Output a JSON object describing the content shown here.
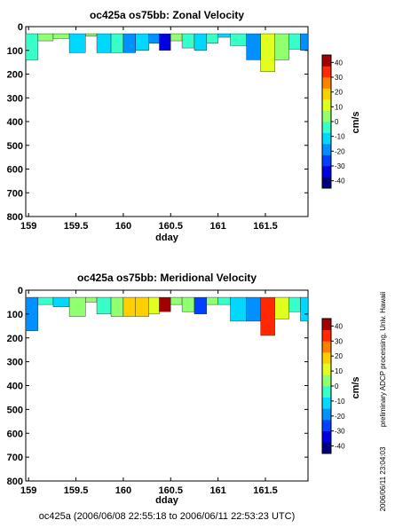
{
  "footer": "oc425a (2006/06/08 22:55:18 to 2006/06/11 22:53:23 UTC)",
  "side_note": "preliminary ADCP processing,   Univ. Hawaii",
  "side_stamp": "2006/06/11 23:04:03",
  "colors": {
    "scale": [
      "#00007f",
      "#0000e0",
      "#0040ff",
      "#0090ff",
      "#00d8ff",
      "#38ffc8",
      "#90ff70",
      "#e0ff20",
      "#ffd000",
      "#ff8000",
      "#ff2800",
      "#a00000"
    ]
  },
  "chart_data": [
    {
      "type": "heatmap",
      "title": "oc425a os75bb: Zonal Velocity",
      "xlabel": "dday",
      "ylabel": "",
      "xlim": [
        158.97,
        161.95
      ],
      "ylim": [
        800,
        0
      ],
      "xticks": [
        159,
        159.5,
        160,
        160.5,
        161,
        161.5
      ],
      "xtick_labels": [
        "159",
        "159.5",
        "160",
        "160.5",
        "161",
        "161.5"
      ],
      "yticks": [
        0,
        100,
        200,
        300,
        400,
        500,
        600,
        700,
        800
      ],
      "colorbar": {
        "label": "cm/s",
        "range": [
          -45,
          45
        ],
        "ticks": [
          40,
          30,
          20,
          10,
          0,
          -10,
          -20,
          -30,
          -40
        ]
      },
      "bins_x": [
        158.97,
        159.1,
        159.26,
        159.43,
        159.6,
        159.72,
        159.87,
        160.0,
        160.13,
        160.27,
        160.38,
        160.5,
        160.62,
        160.75,
        160.88,
        161.0,
        161.13,
        161.3,
        161.45,
        161.6,
        161.75,
        161.87,
        161.95
      ],
      "depth_top": [
        30,
        30,
        30,
        30,
        30,
        30,
        30,
        30,
        30,
        30,
        30,
        30,
        30,
        30,
        30,
        30,
        30,
        30,
        30,
        30,
        30,
        30
      ],
      "depth_bottom": [
        140,
        60,
        50,
        110,
        40,
        110,
        110,
        110,
        100,
        70,
        100,
        60,
        90,
        100,
        70,
        45,
        80,
        140,
        190,
        140,
        95,
        100
      ],
      "values": [
        -6,
        4,
        2,
        -8,
        2,
        -14,
        -4,
        -16,
        -10,
        -22,
        -36,
        3,
        -2,
        -14,
        -6,
        -12,
        -4,
        -16,
        12,
        6,
        -4,
        -16
      ]
    },
    {
      "type": "heatmap",
      "title": "oc425a os75bb: Meridional Velocity",
      "xlabel": "dday",
      "ylabel": "",
      "xlim": [
        158.97,
        161.95
      ],
      "ylim": [
        800,
        0
      ],
      "xticks": [
        159,
        159.5,
        160,
        160.5,
        161,
        161.5
      ],
      "xtick_labels": [
        "159",
        "159.5",
        "160",
        "160.5",
        "161",
        "161.5"
      ],
      "yticks": [
        0,
        100,
        200,
        300,
        400,
        500,
        600,
        700,
        800
      ],
      "colorbar": {
        "label": "cm/s",
        "range": [
          -45,
          45
        ],
        "ticks": [
          40,
          30,
          20,
          10,
          0,
          -10,
          -20,
          -30,
          -40
        ]
      },
      "bins_x": [
        158.97,
        159.1,
        159.26,
        159.43,
        159.6,
        159.72,
        159.87,
        160.0,
        160.13,
        160.27,
        160.38,
        160.5,
        160.62,
        160.75,
        160.88,
        161.0,
        161.13,
        161.3,
        161.45,
        161.6,
        161.75,
        161.87,
        161.95
      ],
      "depth_top": [
        30,
        30,
        30,
        30,
        30,
        30,
        30,
        30,
        30,
        30,
        30,
        30,
        30,
        30,
        30,
        30,
        30,
        30,
        30,
        30,
        30,
        30
      ],
      "depth_bottom": [
        170,
        60,
        70,
        110,
        50,
        100,
        110,
        110,
        110,
        100,
        90,
        60,
        90,
        100,
        60,
        60,
        130,
        130,
        190,
        120,
        90,
        130
      ],
      "values": [
        -16,
        -2,
        -8,
        4,
        2,
        -6,
        6,
        22,
        18,
        10,
        45,
        4,
        0,
        -26,
        2,
        -4,
        -8,
        -22,
        30,
        8,
        -4,
        -12
      ]
    }
  ]
}
